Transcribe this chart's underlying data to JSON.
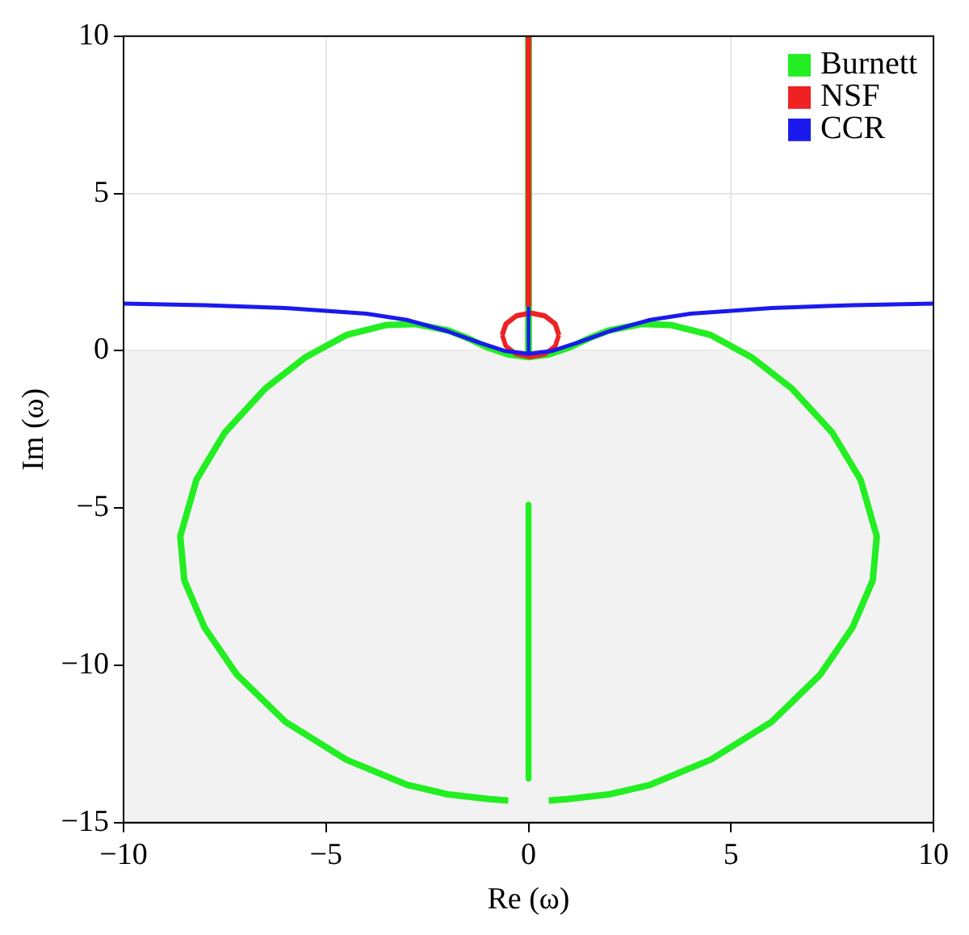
{
  "chart_data": {
    "type": "line",
    "xlabel": "Re (ω)",
    "ylabel": "Im (ω)",
    "xlim": [
      -10,
      10
    ],
    "xticks": [
      -10,
      -5,
      0,
      5,
      10
    ],
    "ylim": [
      -15,
      10
    ],
    "yticks": [
      -15,
      -10,
      -5,
      0,
      5,
      10
    ],
    "grid": true,
    "legend": "top right",
    "marker": "none",
    "line_style": "solid",
    "bands": [
      {
        "axis": "y",
        "from": -15,
        "to": 0,
        "color": "#f2f2f2"
      }
    ],
    "series": [
      {
        "name": "Burnett",
        "color": "#22ee22",
        "x": [
          0,
          0
        ],
        "values": [
          -0.1,
          10
        ]
      },
      {
        "color": "#22ee22",
        "x": [
          -0.5,
          -1,
          -2,
          -3,
          -4.5,
          -6,
          -7.2,
          -8,
          -8.5,
          -8.6,
          -8.2,
          -7.5,
          -6.5,
          -5.5,
          -4.5,
          -3.5,
          -2.8,
          -2,
          -1.5,
          -1,
          -0.5,
          0,
          0.5,
          1,
          1.5,
          2,
          2.8,
          3.5,
          4.5,
          5.5,
          6.5,
          7.5,
          8.2,
          8.6,
          8.5,
          8,
          7.2,
          6,
          4.5,
          3,
          2,
          1,
          0.5
        ],
        "values": [
          -14.3,
          -14.25,
          -14.1,
          -13.8,
          -13,
          -11.8,
          -10.3,
          -8.8,
          -7.3,
          -5.9,
          -4.1,
          -2.6,
          -1.2,
          -0.2,
          0.5,
          0.82,
          0.85,
          0.65,
          0.4,
          0.1,
          -0.12,
          -0.2,
          -0.12,
          0.1,
          0.4,
          0.65,
          0.85,
          0.82,
          0.5,
          -0.2,
          -1.2,
          -2.6,
          -4.1,
          -5.9,
          -7.3,
          -8.8,
          -10.3,
          -11.8,
          -13,
          -13.8,
          -14.1,
          -14.25,
          -14.3
        ]
      },
      {
        "color": "#22ee22",
        "x": [
          0,
          0
        ],
        "values": [
          -4.9,
          -13.6
        ]
      },
      {
        "name": "NSF",
        "color": "#ee2222",
        "x": [
          0,
          0
        ],
        "values": [
          1.4,
          10
        ]
      },
      {
        "color": "#ee2222",
        "x": [
          -0.65,
          -0.56,
          -0.3,
          0.05,
          0.4,
          0.66,
          0.75
        ],
        "values": [
          0.5,
          0.85,
          1.11,
          1.2,
          1.11,
          0.85,
          0.5
        ]
      },
      {
        "color": "#ee2222",
        "x": [
          -0.65,
          -0.56,
          -0.3,
          0.05,
          0.4,
          0.66,
          0.75
        ],
        "values": [
          0.5,
          0.15,
          -0.11,
          -0.2,
          -0.11,
          0.15,
          0.5
        ]
      },
      {
        "name": "CCR",
        "color": "#1a1aee",
        "x": [
          -10,
          -8,
          -6,
          -4,
          -3,
          -2,
          -1.2,
          -0.6,
          0,
          0.6,
          1.2,
          2,
          3,
          4,
          6,
          8,
          10
        ],
        "values": [
          1.5,
          1.45,
          1.36,
          1.18,
          0.98,
          0.62,
          0.25,
          0,
          -0.1,
          0,
          0.25,
          0.62,
          0.98,
          1.18,
          1.36,
          1.45,
          1.5
        ]
      },
      {
        "color": "#1a1aee",
        "x": [
          0,
          0
        ],
        "values": [
          -0.1,
          1.4
        ]
      }
    ]
  }
}
